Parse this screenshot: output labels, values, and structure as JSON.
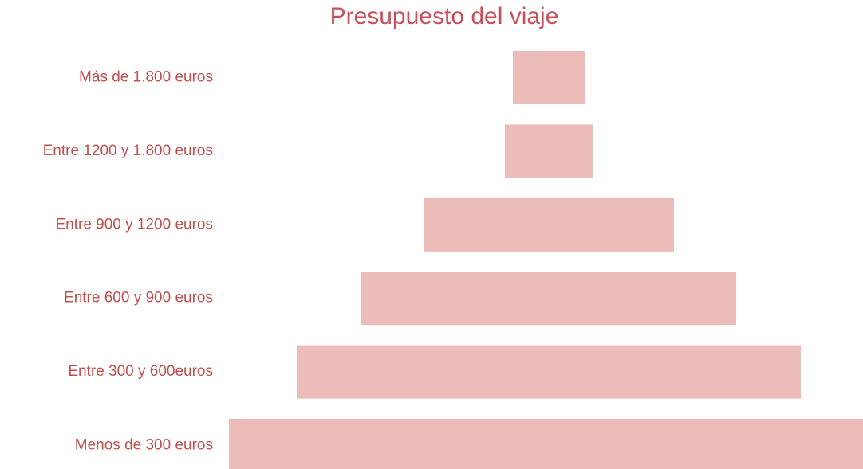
{
  "chart_data": {
    "type": "funnel",
    "title": "Presupuesto del viaje",
    "categories": [
      "Más de 1.800 euros",
      "Entre 1200 y 1.800 euros",
      "Entre 900 y 1200 euros",
      "Entre 600 y 900 euros",
      "Entre 300 y 600euros",
      "Menos de 300 euros"
    ],
    "values": [
      4.5,
      5.5,
      15.7,
      23.5,
      31.6,
      40.1
    ],
    "color": "#ebbcb8"
  }
}
